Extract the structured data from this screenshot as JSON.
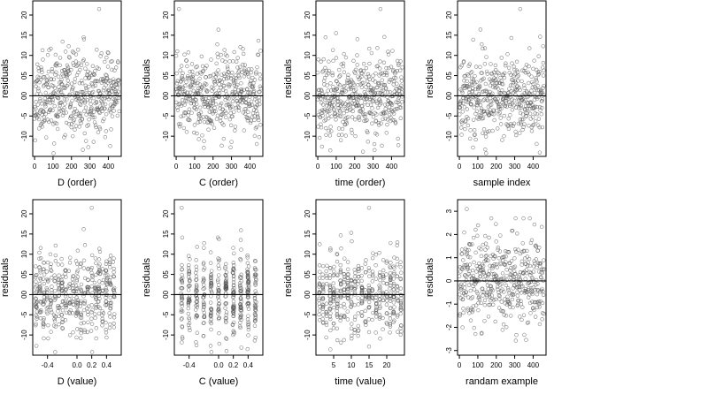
{
  "chart_data": [
    {
      "type": "scatter",
      "title": "",
      "xlabel": "D (order)",
      "ylabel": "residuals",
      "xlim": [
        -10,
        470
      ],
      "ylim": [
        -15,
        23.5
      ],
      "xticks": [
        0,
        100,
        200,
        300,
        400
      ],
      "xtick_labels": [
        "0",
        "100",
        "200",
        "300",
        "400"
      ],
      "yticks": [
        -10,
        -5,
        0,
        5,
        10,
        15,
        20
      ],
      "ytick_labels": [
        "-10",
        "-5",
        "00",
        "05",
        "10",
        "15",
        "20"
      ],
      "hline": 0,
      "points": {
        "kind": "index",
        "n": 460,
        "seed": 11,
        "sd": 5,
        "outlier": [
          350,
          21.5
        ]
      }
    },
    {
      "type": "scatter",
      "title": "",
      "xlabel": "C (order)",
      "ylabel": "residuals",
      "xlim": [
        -10,
        470
      ],
      "ylim": [
        -15,
        23.5
      ],
      "xticks": [
        0,
        100,
        200,
        300,
        400
      ],
      "xtick_labels": [
        "0",
        "100",
        "200",
        "300",
        "400"
      ],
      "yticks": [
        -10,
        -5,
        0,
        5,
        10,
        15,
        20
      ],
      "ytick_labels": [
        "-10",
        "-5",
        "00",
        "05",
        "10",
        "15",
        "20"
      ],
      "hline": 0,
      "points": {
        "kind": "index",
        "n": 460,
        "seed": 23,
        "sd": 5,
        "outlier": [
          15,
          21.5
        ]
      }
    },
    {
      "type": "scatter",
      "title": "",
      "xlabel": "time (order)",
      "ylabel": "residuals",
      "xlim": [
        -10,
        470
      ],
      "ylim": [
        -15,
        23.5
      ],
      "xticks": [
        0,
        100,
        200,
        300,
        400
      ],
      "xtick_labels": [
        "0",
        "100",
        "200",
        "300",
        "400"
      ],
      "yticks": [
        -10,
        -5,
        0,
        5,
        10,
        15,
        20
      ],
      "ytick_labels": [
        "-10",
        "-5",
        "00",
        "05",
        "10",
        "15",
        "20"
      ],
      "hline": 0,
      "points": {
        "kind": "index",
        "n": 460,
        "seed": 37,
        "sd": 5,
        "outlier": [
          340,
          21.5
        ]
      }
    },
    {
      "type": "scatter",
      "title": "",
      "xlabel": "sample index",
      "ylabel": "residuals",
      "xlim": [
        -10,
        470
      ],
      "ylim": [
        -15,
        23.5
      ],
      "xticks": [
        0,
        100,
        200,
        300,
        400
      ],
      "xtick_labels": [
        "0",
        "100",
        "200",
        "300",
        "400"
      ],
      "yticks": [
        -10,
        -5,
        0,
        5,
        10,
        15,
        20
      ],
      "ytick_labels": [
        "-10",
        "-5",
        "00",
        "05",
        "10",
        "15",
        "20"
      ],
      "hline": 0,
      "points": {
        "kind": "index",
        "n": 460,
        "seed": 41,
        "sd": 5,
        "outlier": [
          330,
          21.5
        ]
      }
    },
    {
      "type": "scatter",
      "title": "",
      "xlabel": "D (value)",
      "ylabel": "residuals",
      "xlim": [
        -0.6,
        0.6
      ],
      "ylim": [
        -15,
        23.5
      ],
      "xticks": [
        -0.4,
        0,
        0.2,
        0.4
      ],
      "xtick_labels": [
        "-0.4",
        "0.0",
        "0.2",
        "0.4"
      ],
      "yticks": [
        -10,
        -5,
        0,
        5,
        10,
        15,
        20
      ],
      "ytick_labels": [
        "-10",
        "-5",
        "00",
        "05",
        "10",
        "15",
        "20"
      ],
      "hline": 0,
      "points": {
        "kind": "discrete",
        "n": 460,
        "seed": 53,
        "sd": 5,
        "levels": [
          -0.55,
          -0.5,
          -0.45,
          -0.4,
          -0.35,
          -0.3,
          -0.25,
          -0.2,
          -0.15,
          -0.1,
          -0.05,
          0,
          0.05,
          0.1,
          0.15,
          0.2,
          0.25,
          0.3,
          0.35,
          0.4,
          0.45,
          0.5
        ],
        "jitter": 0.012,
        "outlier": [
          0.2,
          21.5
        ]
      }
    },
    {
      "type": "scatter",
      "title": "",
      "xlabel": "C (value)",
      "ylabel": "residuals",
      "xlim": [
        -0.6,
        0.6
      ],
      "ylim": [
        -15,
        23.5
      ],
      "xticks": [
        -0.4,
        0,
        0.2,
        0.4
      ],
      "xtick_labels": [
        "-0.4",
        "0.0",
        "0.2",
        "0.4"
      ],
      "yticks": [
        -10,
        -5,
        0,
        5,
        10,
        15,
        20
      ],
      "ytick_labels": [
        "-10",
        "-5",
        "00",
        "05",
        "10",
        "15",
        "20"
      ],
      "hline": 0,
      "points": {
        "kind": "discrete",
        "n": 460,
        "seed": 67,
        "sd": 5,
        "levels": [
          -0.5,
          -0.4,
          -0.3,
          -0.2,
          -0.1,
          0,
          0.1,
          0.2,
          0.3,
          0.4,
          0.5
        ],
        "jitter": 0.01,
        "outlier": [
          -0.5,
          21.5
        ]
      }
    },
    {
      "type": "scatter",
      "title": "",
      "xlabel": "time (value)",
      "ylabel": "residuals",
      "xlim": [
        0,
        25
      ],
      "ylim": [
        -15,
        23.5
      ],
      "xticks": [
        5,
        10,
        15,
        20
      ],
      "xtick_labels": [
        "5",
        "10",
        "15",
        "20"
      ],
      "yticks": [
        -10,
        -5,
        0,
        5,
        10,
        15,
        20
      ],
      "ytick_labels": [
        "-10",
        "-5",
        "00",
        "05",
        "10",
        "15",
        "20"
      ],
      "hline": 0,
      "points": {
        "kind": "discrete",
        "n": 460,
        "seed": 79,
        "sd": 5,
        "levels": [
          1,
          2,
          3,
          4,
          5,
          6,
          7,
          8,
          9,
          10,
          11,
          12,
          13,
          14,
          15,
          16,
          17,
          18,
          19,
          20,
          21,
          22,
          23,
          24
        ],
        "jitter": 0.12,
        "outlier": [
          15,
          21.5
        ]
      }
    },
    {
      "type": "scatter",
      "title": "",
      "xlabel": "randam example",
      "ylabel": "residuals",
      "xlim": [
        -10,
        470
      ],
      "ylim": [
        -3.2,
        3.5
      ],
      "xticks": [
        0,
        100,
        200,
        300,
        400
      ],
      "xtick_labels": [
        "0",
        "100",
        "200",
        "300",
        "400"
      ],
      "yticks": [
        -3,
        -2,
        -1,
        0,
        1,
        2,
        3
      ],
      "ytick_labels": [
        "-3",
        "-2",
        "-1",
        "0",
        "1",
        "2",
        "3"
      ],
      "hline": 0,
      "points": {
        "kind": "index",
        "n": 460,
        "seed": 97,
        "sd": 1,
        "outlier": [
          40,
          3.1
        ]
      }
    }
  ]
}
